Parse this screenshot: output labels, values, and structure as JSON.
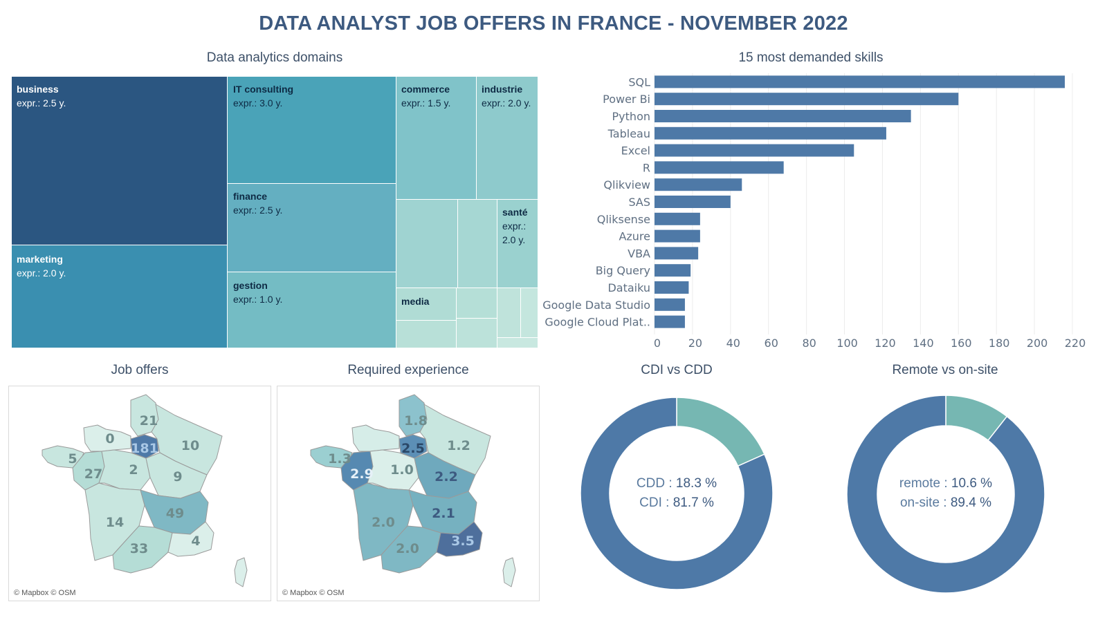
{
  "title": "DATA ANALYST JOB OFFERS IN FRANCE - NOVEMBER 2022",
  "colors": {
    "dark": "#2c5480",
    "bar": "#4e79a7",
    "teal": "#76b7b2"
  },
  "treemap": {
    "title": "Data analytics domains",
    "value_prefix": "expr.: ",
    "value_suffix": " y.",
    "cells": [
      {
        "name": "business",
        "experience": "2.5"
      },
      {
        "name": "marketing",
        "experience": "2.0"
      },
      {
        "name": "IT consulting",
        "experience": "3.0"
      },
      {
        "name": "finance",
        "experience": "2.5"
      },
      {
        "name": "gestion",
        "experience": "1.0"
      },
      {
        "name": "commerce",
        "experience": "1.5"
      },
      {
        "name": "industrie",
        "experience": "2.0"
      },
      {
        "name": "santé",
        "experience": "2.0"
      },
      {
        "name": "media",
        "experience": ""
      }
    ]
  },
  "chart_data": [
    {
      "type": "bar",
      "orientation": "horizontal",
      "title": "15 most demanded skills",
      "categories": [
        "SQL",
        "Power Bi",
        "Python",
        "Tableau",
        "Excel",
        "R",
        "Qlikview",
        "SAS",
        "Qliksense",
        "Azure",
        "VBA",
        "Big Query",
        "Dataiku",
        "Google Data Studio",
        "Google Cloud Plat.."
      ],
      "values": [
        216,
        160,
        135,
        122,
        105,
        68,
        46,
        40,
        24,
        24,
        23,
        19,
        18,
        16,
        16
      ],
      "xlim": [
        0,
        220
      ],
      "xticks": [
        0,
        20,
        40,
        60,
        80,
        100,
        120,
        140,
        160,
        180,
        200,
        220
      ],
      "grid": true
    },
    {
      "type": "pie",
      "title": "CDI vs CDD",
      "labels": [
        "CDD",
        "CDI"
      ],
      "values": [
        18.3,
        81.7
      ],
      "display": [
        "18.3 %",
        "81.7 %"
      ]
    },
    {
      "type": "pie",
      "title": "Remote vs on-site",
      "labels": [
        "remote",
        "on-site"
      ],
      "values": [
        10.6,
        89.4
      ],
      "display": [
        "10.6 %",
        "89.4 %"
      ]
    }
  ],
  "maps": {
    "credit": "© Mapbox © OSM",
    "offers": {
      "title": "Job offers",
      "labels": [
        "21",
        "0",
        "181",
        "10",
        "5",
        "27",
        "2",
        "9",
        "49",
        "14",
        "33",
        "4"
      ]
    },
    "experience": {
      "title": "Required experience",
      "labels": [
        "1.8",
        "2.5",
        "1.2",
        "1.3",
        "2.9",
        "1.0",
        "2.2",
        "2.1",
        "2.0",
        "2.0",
        "3.5"
      ]
    }
  }
}
